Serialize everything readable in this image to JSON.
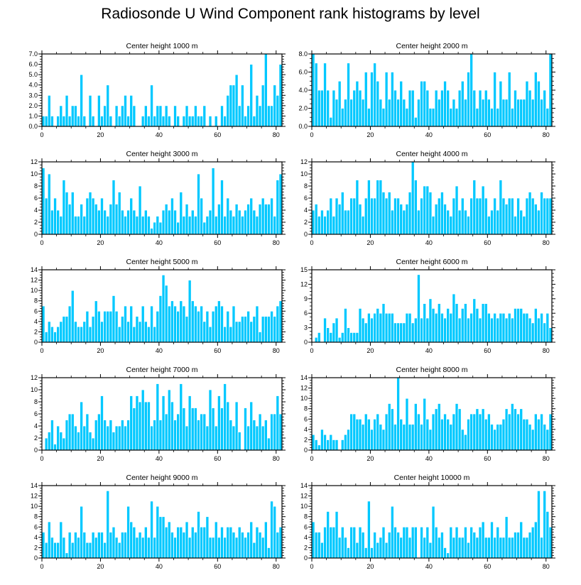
{
  "title": "Radiosonde U Wind Component rank histograms by level",
  "colors": {
    "bar": "#00c8ff",
    "bar_edge": "#ffffff",
    "axis": "#000000"
  },
  "chart_data": [
    {
      "type": "bar",
      "title": "Center height 1000 m",
      "ylim": [
        0,
        7
      ],
      "yticks": [
        0,
        1,
        2,
        3,
        4,
        5,
        6,
        7
      ],
      "ytick_labels": [
        "0.0",
        "1.0",
        "2.0",
        "3.0",
        "4.0",
        "5.0",
        "6.0",
        "7.0"
      ],
      "xlim": [
        0,
        82
      ],
      "xticks": [
        0,
        20,
        40,
        60,
        80
      ],
      "xtick_labels": [
        "0",
        "20",
        "40",
        "60",
        "80"
      ],
      "values": [
        1,
        1,
        3,
        1,
        0,
        1,
        2,
        1,
        3,
        1,
        2,
        2,
        1,
        5,
        1,
        0,
        3,
        1,
        0,
        3,
        1,
        2,
        4,
        1,
        0,
        2,
        1,
        2,
        3,
        1,
        3,
        2,
        0,
        0,
        1,
        2,
        1,
        4,
        1,
        2,
        2,
        1,
        2,
        1,
        0,
        2,
        1,
        0,
        1,
        2,
        1,
        1,
        2,
        1,
        1,
        2,
        0,
        1,
        0,
        1,
        0,
        2,
        1,
        3,
        4,
        4,
        5,
        2,
        4,
        1,
        2,
        6,
        1,
        3,
        2,
        4,
        7,
        2,
        2,
        4,
        3,
        6
      ]
    },
    {
      "type": "bar",
      "title": "Center height 2000 m",
      "ylim": [
        0,
        8
      ],
      "yticks": [
        0,
        2,
        4,
        6,
        8
      ],
      "ytick_labels": [
        "0.0",
        "2.0",
        "4.0",
        "6.0",
        "8.0"
      ],
      "xlim": [
        0,
        82
      ],
      "xticks": [
        0,
        20,
        40,
        60,
        80
      ],
      "xtick_labels": [
        "0",
        "20",
        "40",
        "60",
        "80"
      ],
      "values": [
        8,
        7,
        4,
        4,
        7,
        4,
        1,
        4,
        3,
        5,
        2,
        3,
        7,
        3,
        4,
        5,
        4,
        3,
        6,
        2,
        6,
        7,
        5,
        3,
        2,
        6,
        3,
        6,
        4,
        3,
        5,
        3,
        2,
        4,
        4,
        1,
        3,
        5,
        5,
        4,
        2,
        2,
        4,
        3,
        4,
        5,
        4,
        2,
        3,
        2,
        4,
        5,
        3,
        6,
        8,
        4,
        2,
        4,
        3,
        4,
        3,
        2,
        6,
        2,
        5,
        3,
        3,
        6,
        2,
        4,
        3,
        3,
        3,
        5,
        4,
        3,
        6,
        5,
        3,
        4,
        2,
        8
      ]
    },
    {
      "type": "bar",
      "title": "Center height 3000 m",
      "ylim": [
        0,
        12
      ],
      "yticks": [
        0,
        2,
        4,
        6,
        8,
        10,
        12
      ],
      "ytick_labels": [
        "0",
        "2",
        "4",
        "6",
        "8",
        "10",
        "12"
      ],
      "xlim": [
        0,
        82
      ],
      "xticks": [
        0,
        20,
        40,
        60,
        80
      ],
      "xtick_labels": [
        "0",
        "20",
        "40",
        "60",
        "80"
      ],
      "values": [
        11,
        6,
        10,
        4,
        6,
        4,
        3,
        9,
        7,
        5,
        7,
        3,
        3,
        5,
        3,
        6,
        7,
        6,
        5,
        4,
        6,
        4,
        3,
        5,
        9,
        5,
        7,
        4,
        3,
        4,
        6,
        4,
        3,
        8,
        3,
        4,
        3,
        1,
        2,
        3,
        2,
        4,
        5,
        4,
        6,
        4,
        2,
        7,
        3,
        5,
        3,
        4,
        3,
        10,
        6,
        2,
        3,
        4,
        11,
        3,
        5,
        9,
        3,
        6,
        4,
        3,
        5,
        4,
        3,
        4,
        5,
        6,
        4,
        3,
        5,
        6,
        5,
        5,
        6,
        3,
        9,
        10
      ]
    },
    {
      "type": "bar",
      "title": "Center height 4000 m",
      "ylim": [
        0,
        12
      ],
      "yticks": [
        0,
        2,
        4,
        6,
        8,
        10,
        12
      ],
      "ytick_labels": [
        "0",
        "2",
        "4",
        "6",
        "8",
        "10",
        "12"
      ],
      "xlim": [
        0,
        82
      ],
      "xticks": [
        0,
        20,
        40,
        60,
        80
      ],
      "xtick_labels": [
        "0",
        "20",
        "40",
        "60",
        "80"
      ],
      "values": [
        4,
        5,
        3,
        4,
        3,
        4,
        6,
        3,
        6,
        5,
        7,
        4,
        4,
        6,
        6,
        9,
        5,
        3,
        6,
        9,
        6,
        6,
        9,
        9,
        7,
        6,
        7,
        4,
        6,
        6,
        5,
        4,
        5,
        7,
        12,
        9,
        4,
        6,
        8,
        8,
        7,
        3,
        5,
        6,
        7,
        5,
        4,
        3,
        6,
        8,
        4,
        6,
        4,
        3,
        6,
        9,
        6,
        6,
        8,
        6,
        3,
        4,
        6,
        4,
        9,
        6,
        5,
        6,
        6,
        3,
        6,
        4,
        3,
        6,
        7,
        6,
        5,
        4,
        7,
        6,
        6,
        6
      ]
    },
    {
      "type": "bar",
      "title": "Center height 5000 m",
      "ylim": [
        0,
        14
      ],
      "yticks": [
        0,
        2,
        4,
        6,
        8,
        10,
        12,
        14
      ],
      "ytick_labels": [
        "0",
        "2",
        "4",
        "6",
        "8",
        "10",
        "12",
        "14"
      ],
      "xlim": [
        0,
        82
      ],
      "xticks": [
        0,
        20,
        40,
        60,
        80
      ],
      "xtick_labels": [
        "0",
        "20",
        "40",
        "60",
        "80"
      ],
      "values": [
        7,
        2,
        4,
        3,
        2,
        3,
        4,
        5,
        5,
        7,
        10,
        4,
        3,
        3,
        4,
        6,
        3,
        5,
        8,
        6,
        4,
        6,
        6,
        6,
        9,
        6,
        3,
        5,
        7,
        4,
        7,
        3,
        5,
        4,
        7,
        4,
        3,
        7,
        3,
        6,
        9,
        13,
        11,
        7,
        8,
        7,
        6,
        8,
        7,
        5,
        12,
        8,
        7,
        6,
        7,
        4,
        6,
        3,
        6,
        7,
        8,
        7,
        3,
        6,
        3,
        7,
        4,
        4,
        5,
        5,
        6,
        4,
        5,
        7,
        2,
        5,
        5,
        5,
        6,
        5,
        7,
        8
      ]
    },
    {
      "type": "bar",
      "title": "Center height 6000 m",
      "ylim": [
        0,
        15
      ],
      "yticks": [
        0,
        3,
        6,
        9,
        12,
        15
      ],
      "ytick_labels": [
        "0",
        "3",
        "6",
        "9",
        "12",
        "15"
      ],
      "xlim": [
        0,
        82
      ],
      "xticks": [
        0,
        20,
        40,
        60,
        80
      ],
      "xtick_labels": [
        "0",
        "20",
        "40",
        "60",
        "80"
      ],
      "values": [
        0,
        1,
        2,
        0,
        5,
        3,
        2,
        4,
        5,
        1,
        2,
        7,
        3,
        2,
        2,
        2,
        7,
        5,
        4,
        6,
        5,
        6,
        7,
        6,
        8,
        6,
        6,
        6,
        4,
        4,
        4,
        4,
        6,
        6,
        4,
        5,
        14,
        5,
        8,
        5,
        9,
        7,
        6,
        8,
        6,
        5,
        7,
        6,
        10,
        8,
        5,
        7,
        8,
        5,
        6,
        9,
        7,
        5,
        8,
        8,
        6,
        5,
        6,
        5,
        6,
        6,
        5,
        6,
        5,
        7,
        7,
        7,
        6,
        6,
        5,
        4,
        7,
        5,
        6,
        4,
        6,
        3
      ]
    },
    {
      "type": "bar",
      "title": "Center height 7000 m",
      "ylim": [
        0,
        12
      ],
      "yticks": [
        0,
        2,
        4,
        6,
        8,
        10,
        12
      ],
      "ytick_labels": [
        "0",
        "2",
        "4",
        "6",
        "8",
        "10",
        "12"
      ],
      "xlim": [
        0,
        82
      ],
      "xticks": [
        0,
        20,
        40,
        60,
        80
      ],
      "xtick_labels": [
        "0",
        "20",
        "40",
        "60",
        "80"
      ],
      "values": [
        0,
        2,
        3,
        5,
        1,
        4,
        3,
        2,
        5,
        6,
        6,
        4,
        3,
        8,
        4,
        6,
        3,
        2,
        5,
        6,
        9,
        5,
        4,
        5,
        3,
        4,
        4,
        5,
        4,
        5,
        9,
        7,
        9,
        8,
        10,
        8,
        8,
        4,
        5,
        11,
        5,
        9,
        6,
        10,
        8,
        5,
        6,
        11,
        7,
        4,
        9,
        7,
        7,
        5,
        6,
        6,
        4,
        10,
        7,
        4,
        9,
        7,
        11,
        8,
        5,
        4,
        8,
        3,
        0,
        7,
        4,
        8,
        5,
        4,
        6,
        4,
        5,
        2,
        6,
        6,
        9,
        6
      ]
    },
    {
      "type": "bar",
      "title": "Center height 8000 m",
      "ylim": [
        0,
        14
      ],
      "yticks": [
        0,
        2,
        4,
        6,
        8,
        10,
        12,
        14
      ],
      "ytick_labels": [
        "0",
        "2",
        "4",
        "6",
        "8",
        "10",
        "12",
        "14"
      ],
      "xlim": [
        0,
        82
      ],
      "xticks": [
        0,
        20,
        40,
        60,
        80
      ],
      "xtick_labels": [
        "0",
        "20",
        "40",
        "60",
        "80"
      ],
      "values": [
        3,
        2,
        1,
        4,
        3,
        2,
        3,
        2,
        2,
        0,
        2,
        3,
        4,
        7,
        7,
        6,
        6,
        5,
        7,
        6,
        4,
        6,
        7,
        5,
        4,
        7,
        9,
        8,
        5,
        14,
        6,
        5,
        10,
        5,
        5,
        9,
        7,
        5,
        10,
        6,
        4,
        7,
        8,
        9,
        6,
        7,
        6,
        5,
        7,
        9,
        8,
        4,
        3,
        6,
        7,
        7,
        8,
        7,
        8,
        6,
        7,
        5,
        4,
        5,
        5,
        6,
        8,
        7,
        9,
        8,
        7,
        8,
        6,
        6,
        5,
        4,
        7,
        6,
        7,
        5,
        4,
        7
      ]
    },
    {
      "type": "bar",
      "title": "Center height 9000 m",
      "ylim": [
        0,
        14
      ],
      "yticks": [
        0,
        2,
        4,
        6,
        8,
        10,
        12,
        14
      ],
      "ytick_labels": [
        "0",
        "2",
        "4",
        "6",
        "8",
        "10",
        "12",
        "14"
      ],
      "xlim": [
        0,
        82
      ],
      "xticks": [
        0,
        20,
        40,
        60,
        80
      ],
      "xtick_labels": [
        "0",
        "20",
        "40",
        "60",
        "80"
      ],
      "values": [
        5,
        3,
        7,
        4,
        3,
        3,
        7,
        4,
        1,
        5,
        3,
        5,
        4,
        10,
        5,
        3,
        3,
        5,
        4,
        5,
        5,
        3,
        13,
        5,
        6,
        4,
        3,
        5,
        5,
        10,
        7,
        6,
        4,
        5,
        4,
        6,
        4,
        11,
        4,
        10,
        8,
        8,
        6,
        7,
        5,
        4,
        6,
        6,
        5,
        7,
        4,
        6,
        5,
        9,
        6,
        6,
        8,
        4,
        4,
        7,
        4,
        6,
        4,
        6,
        6,
        5,
        4,
        6,
        5,
        4,
        5,
        7,
        3,
        6,
        5,
        4,
        7,
        2,
        11,
        10,
        5,
        6
      ]
    },
    {
      "type": "bar",
      "title": "Center height 10000 m",
      "ylim": [
        0,
        14
      ],
      "yticks": [
        0,
        2,
        4,
        6,
        8,
        10,
        12,
        14
      ],
      "ytick_labels": [
        "0",
        "2",
        "4",
        "6",
        "8",
        "10",
        "12",
        "14"
      ],
      "xlim": [
        0,
        82
      ],
      "xticks": [
        0,
        20,
        40,
        60,
        80
      ],
      "xtick_labels": [
        "0",
        "20",
        "40",
        "60",
        "80"
      ],
      "values": [
        7,
        5,
        5,
        3,
        6,
        9,
        6,
        6,
        9,
        4,
        6,
        4,
        2,
        6,
        6,
        3,
        6,
        5,
        2,
        11,
        2,
        5,
        3,
        4,
        6,
        3,
        5,
        10,
        6,
        5,
        4,
        6,
        6,
        4,
        6,
        6,
        0,
        6,
        4,
        6,
        3,
        10,
        6,
        4,
        5,
        2,
        1,
        6,
        4,
        6,
        4,
        4,
        6,
        3,
        6,
        5,
        4,
        6,
        7,
        4,
        4,
        7,
        4,
        6,
        4,
        4,
        8,
        4,
        4,
        5,
        5,
        7,
        4,
        4,
        5,
        6,
        7,
        13,
        4,
        13,
        9,
        6
      ]
    }
  ]
}
